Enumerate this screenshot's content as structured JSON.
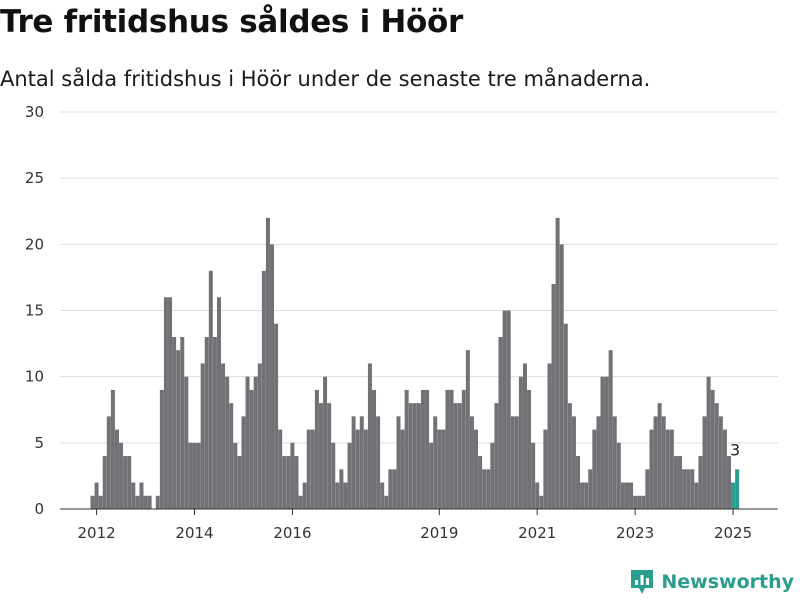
{
  "header": {
    "title": "Tre fritidshus såldes i Höör",
    "subtitle": "Antal sålda fritidshus i Höör under de senaste tre månaderna."
  },
  "brand": {
    "name": "Newsworthy",
    "logo_icon": "bar-chart-icon",
    "color": "#2a9d8f"
  },
  "colors": {
    "bar": "#727176",
    "highlight": "#2a9d8f",
    "grid": "#dddddd"
  },
  "chart_data": {
    "type": "bar",
    "title": "Tre fritidshus såldes i Höör",
    "subtitle": "Antal sålda fritidshus i Höör under de senaste tre månaderna.",
    "xlabel": "",
    "ylabel": "",
    "ylim": [
      0,
      30
    ],
    "y_ticks": [
      0,
      5,
      10,
      15,
      20,
      25,
      30
    ],
    "x_ticks": [
      {
        "label": "2012",
        "index": 1
      },
      {
        "label": "2014",
        "index": 25
      },
      {
        "label": "2016",
        "index": 49
      },
      {
        "label": "2019",
        "index": 85
      },
      {
        "label": "2021",
        "index": 109
      },
      {
        "label": "2023",
        "index": 133
      },
      {
        "label": "2025",
        "index": 157
      }
    ],
    "grid": true,
    "legend": "none",
    "start_month": "2011-12",
    "highlight_last": true,
    "last_value_label": "3",
    "values": [
      1,
      2,
      1,
      4,
      7,
      9,
      6,
      5,
      4,
      4,
      2,
      1,
      2,
      1,
      1,
      0,
      1,
      9,
      16,
      16,
      13,
      12,
      13,
      10,
      5,
      5,
      5,
      11,
      13,
      18,
      13,
      16,
      11,
      10,
      8,
      5,
      4,
      7,
      10,
      9,
      10,
      11,
      18,
      22,
      20,
      14,
      6,
      4,
      4,
      5,
      4,
      1,
      2,
      6,
      6,
      9,
      8,
      10,
      8,
      5,
      2,
      3,
      2,
      5,
      7,
      6,
      7,
      6,
      11,
      9,
      7,
      2,
      1,
      3,
      3,
      7,
      6,
      9,
      8,
      8,
      8,
      9,
      9,
      5,
      7,
      6,
      6,
      9,
      9,
      8,
      8,
      9,
      12,
      7,
      6,
      4,
      3,
      3,
      5,
      8,
      13,
      15,
      15,
      7,
      7,
      10,
      11,
      9,
      5,
      2,
      1,
      6,
      11,
      17,
      22,
      20,
      14,
      8,
      7,
      4,
      2,
      2,
      3,
      6,
      7,
      10,
      10,
      12,
      7,
      5,
      2,
      2,
      2,
      1,
      1,
      1,
      3,
      6,
      7,
      8,
      7,
      6,
      6,
      4,
      4,
      3,
      3,
      3,
      2,
      4,
      7,
      10,
      9,
      8,
      7,
      6,
      4,
      2,
      3
    ]
  }
}
